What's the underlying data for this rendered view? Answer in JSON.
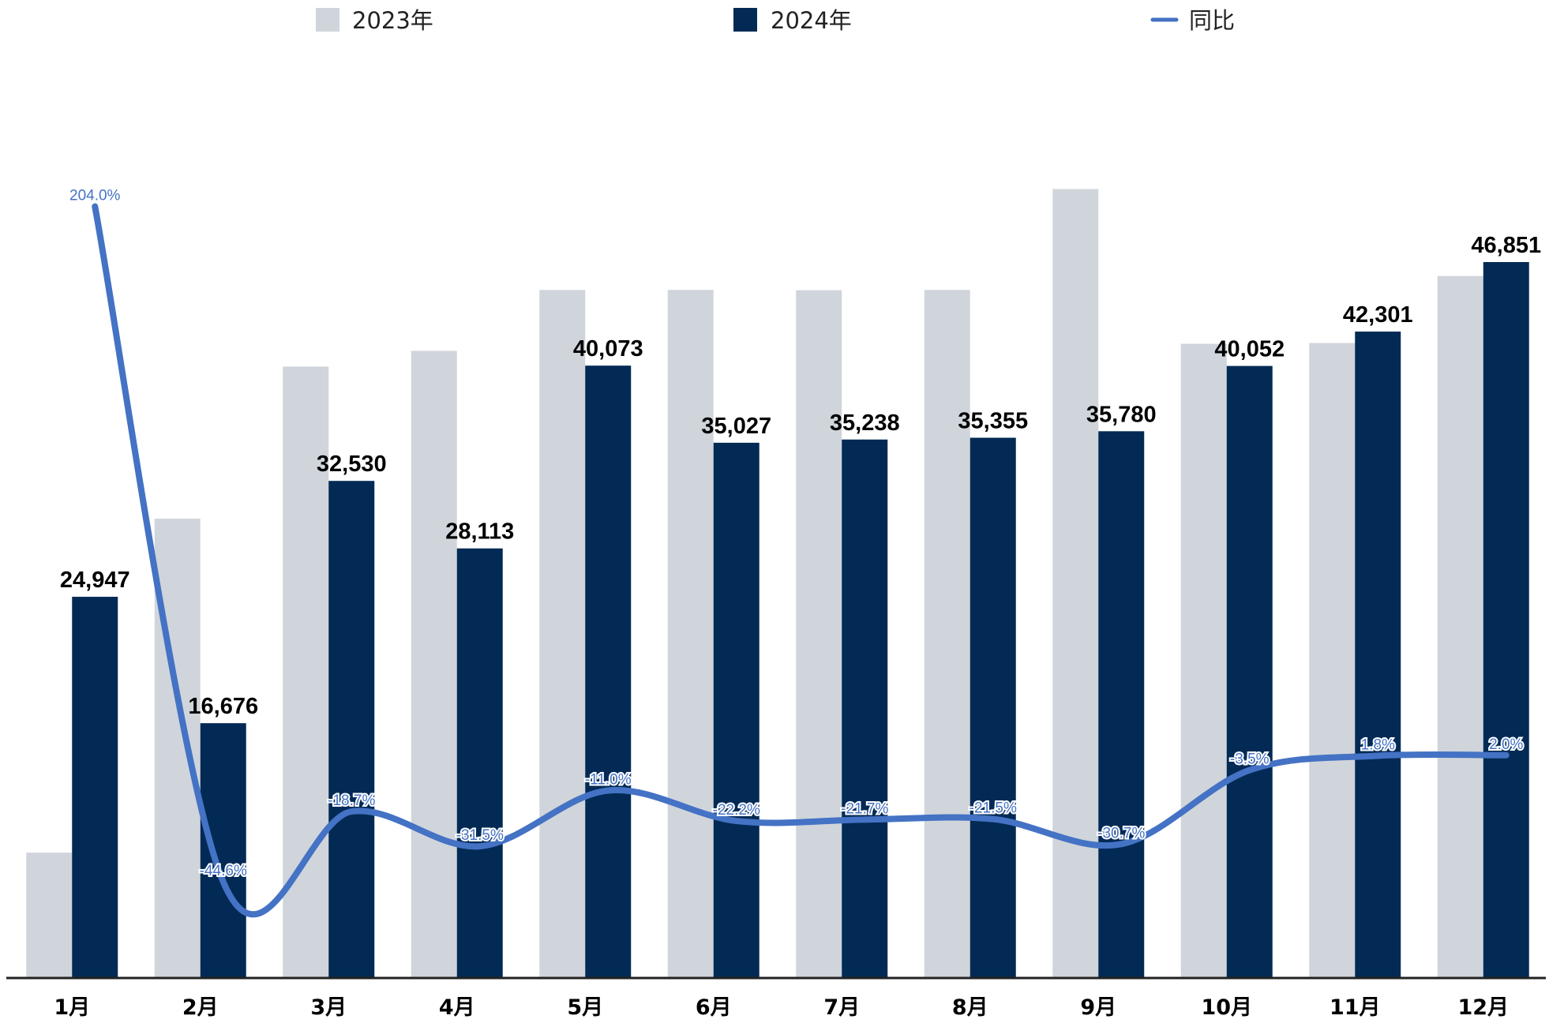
{
  "colors": {
    "series_2023": "#D0D5DB",
    "series_2024": "#022A55",
    "yoy_line": "#4472C4",
    "axis": "#222222"
  },
  "legend": {
    "items": [
      {
        "label": "2023年",
        "marker": "square"
      },
      {
        "label": "2024年",
        "marker": "square"
      },
      {
        "label": "同比",
        "marker": "line"
      }
    ]
  },
  "chart_data": {
    "type": "bar",
    "categories": [
      "1月",
      "2月",
      "3月",
      "4月",
      "5月",
      "6月",
      "7月",
      "8月",
      "9月",
      "10月",
      "11月",
      "12月"
    ],
    "series": [
      {
        "name": "2023年",
        "values": [
          8206,
          30057,
          40012,
          41042,
          45024,
          45029,
          45010,
          45030,
          51630,
          41504,
          41553,
          45934
        ],
        "show_labels": false
      },
      {
        "name": "2024年",
        "values": [
          24947,
          16676,
          32530,
          28113,
          40073,
          35027,
          35238,
          35355,
          35780,
          40052,
          42301,
          46851
        ],
        "show_labels": true
      },
      {
        "name": "同比",
        "type": "line",
        "axis": "secondary",
        "values": [
          204.0,
          -44.6,
          -18.7,
          -31.5,
          -11.0,
          -22.2,
          -21.7,
          -21.5,
          -30.7,
          -3.5,
          1.8,
          2.0
        ],
        "value_labels": [
          "204.0%",
          "-44.6%",
          "-18.7%",
          "-31.5%",
          "-11.0%",
          "-22.2%",
          "-21.7%",
          "-21.5%",
          "-30.7%",
          "-3.5%",
          "1.8%",
          "2.0%"
        ]
      }
    ],
    "value_labels_2024": [
      "24,947",
      "16,676",
      "32,530",
      "28,113",
      "40,073",
      "35,027",
      "35,238",
      "35,355",
      "35,780",
      "40,052",
      "42,301",
      "46,851"
    ],
    "ylim": [
      0,
      64000
    ],
    "y2lim": [
      -80,
      280
    ],
    "grid": false,
    "legend_position": "top"
  }
}
